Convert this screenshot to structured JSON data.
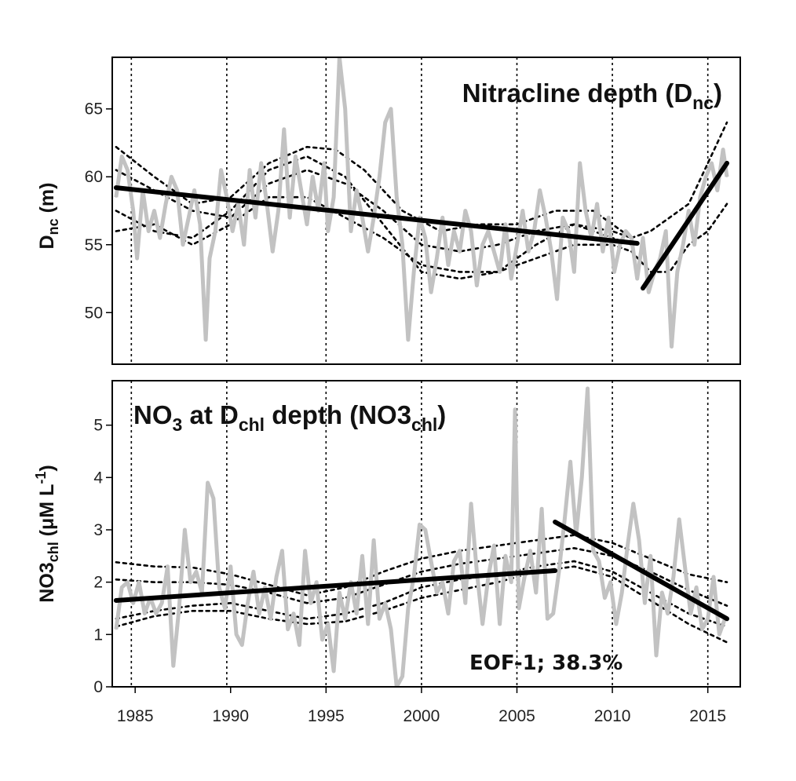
{
  "chart_data": [
    {
      "type": "line",
      "title": "Nitracline depth (D",
      "title_sub": "nc",
      "title_end": ")",
      "ylabel": "D",
      "ylabel_sub": "nc",
      "ylabel_end": " (m)",
      "xlim": [
        1983.8,
        2016.7
      ],
      "ylim": [
        46.2,
        68.8
      ],
      "yticks": [
        50,
        55,
        60,
        65
      ],
      "ytick_labels": [
        "50",
        "55",
        "60",
        "65"
      ],
      "vlines": [
        1984.8,
        1989.8,
        1995.0,
        2000.0,
        2005.0,
        2010.0,
        2015.0
      ],
      "grid": false,
      "series": [
        {
          "role": "observed",
          "color": "#c2c2c2",
          "x": [
            1984.0,
            1984.3,
            1984.6,
            1984.9,
            1985.1,
            1985.4,
            1985.7,
            1986.0,
            1986.3,
            1986.6,
            1986.9,
            1987.2,
            1987.5,
            1987.8,
            1988.1,
            1988.4,
            1988.7,
            1988.9,
            1989.2,
            1989.5,
            1989.8,
            1990.1,
            1990.4,
            1990.7,
            1991.0,
            1991.3,
            1991.6,
            1991.9,
            1992.2,
            1992.5,
            1992.8,
            1993.1,
            1993.4,
            1993.7,
            1994.0,
            1994.3,
            1994.6,
            1994.9,
            1995.1,
            1995.4,
            1995.7,
            1996.0,
            1996.3,
            1996.6,
            1996.9,
            1997.2,
            1997.5,
            1997.8,
            1998.1,
            1998.4,
            1998.7,
            1999.0,
            1999.3,
            1999.6,
            1999.9,
            2000.2,
            2000.5,
            2000.8,
            2001.1,
            2001.4,
            2001.7,
            2002.0,
            2002.3,
            2002.6,
            2002.9,
            2003.2,
            2003.5,
            2003.8,
            2004.1,
            2004.4,
            2004.7,
            2005.0,
            2005.3,
            2005.6,
            2005.9,
            2006.2,
            2006.5,
            2006.8,
            2007.1,
            2007.4,
            2007.7,
            2008.0,
            2008.3,
            2008.6,
            2008.9,
            2009.2,
            2009.5,
            2009.8,
            2010.1,
            2010.4,
            2010.7,
            2011.0,
            2011.3,
            2011.6,
            2011.9,
            2012.2,
            2012.5,
            2012.8,
            2013.1,
            2013.4,
            2013.7,
            2014.0,
            2014.3,
            2014.6,
            2014.9,
            2015.2,
            2015.5,
            2015.8,
            2016.0
          ],
          "y": [
            58.5,
            61.5,
            60.5,
            57.5,
            54.0,
            59.0,
            56.0,
            57.5,
            55.5,
            58.0,
            60.0,
            59.0,
            55.0,
            57.0,
            59.0,
            56.5,
            48.0,
            54.0,
            56.0,
            60.5,
            58.5,
            56.0,
            58.0,
            55.0,
            60.5,
            57.0,
            61.0,
            58.0,
            54.5,
            57.5,
            63.5,
            57.0,
            61.5,
            59.0,
            56.5,
            60.0,
            57.5,
            61.0,
            56.0,
            58.5,
            68.8,
            65.0,
            56.0,
            59.0,
            57.0,
            54.5,
            57.0,
            60.0,
            64.0,
            65.0,
            58.5,
            55.0,
            48.0,
            53.0,
            57.0,
            55.5,
            51.5,
            54.0,
            57.0,
            53.5,
            56.0,
            54.5,
            57.5,
            56.0,
            52.0,
            55.0,
            56.0,
            54.5,
            53.0,
            56.5,
            52.5,
            55.0,
            57.5,
            54.5,
            56.0,
            59.0,
            57.0,
            54.5,
            51.0,
            57.0,
            56.0,
            53.0,
            61.0,
            57.5,
            55.5,
            58.0,
            54.5,
            57.0,
            53.0,
            55.0,
            56.0,
            55.5,
            52.5,
            55.5,
            51.5,
            53.0,
            54.0,
            56.0,
            47.5,
            53.0,
            55.0,
            57.5,
            55.0,
            58.5,
            60.0,
            61.0,
            59.0,
            62.0,
            60.0
          ]
        },
        {
          "role": "trend",
          "color": "#000000",
          "x": [
            1984.0,
            2011.3
          ],
          "y": [
            59.2,
            55.1
          ]
        },
        {
          "role": "trend",
          "color": "#000000",
          "x": [
            2011.6,
            2016.0
          ],
          "y": [
            51.8,
            61.0
          ]
        },
        {
          "role": "interval",
          "color": "#000000",
          "style": "dotted",
          "x": [
            1984.0,
            1986.0,
            1988.0,
            1990.0,
            1992.0,
            1994.0,
            1995.5,
            1997.0,
            1999.0,
            2001.0,
            2003.0,
            2005.0,
            2007.0,
            2009.0,
            2011.0
          ],
          "y": [
            62.2,
            60.0,
            58.0,
            58.5,
            61.0,
            62.2,
            62.0,
            60.5,
            57.5,
            56.0,
            56.5,
            56.5,
            57.5,
            57.5,
            55.5
          ]
        },
        {
          "role": "interval",
          "color": "#000000",
          "style": "dotted",
          "x": [
            1984.0,
            1986.0,
            1988.0,
            1990.0,
            1992.0,
            1994.0,
            1996.0,
            1998.0,
            2000.0,
            2002.0,
            2004.0,
            2006.0,
            2008.0,
            2010.0,
            2011.0
          ],
          "y": [
            60.5,
            59.0,
            57.5,
            57.0,
            59.5,
            60.5,
            59.5,
            57.5,
            55.0,
            54.5,
            55.0,
            56.0,
            56.5,
            55.5,
            55.0
          ]
        },
        {
          "role": "interval",
          "color": "#000000",
          "style": "dotted",
          "x": [
            1984.0,
            1986.0,
            1988.0,
            1990.0,
            1992.0,
            1994.0,
            1996.0,
            1998.0,
            2000.0,
            2002.0,
            2004.0,
            2006.0,
            2008.0,
            2010.0,
            2011.0
          ],
          "y": [
            56.0,
            56.5,
            55.0,
            56.5,
            58.5,
            58.5,
            57.0,
            55.5,
            53.5,
            53.0,
            53.0,
            55.0,
            56.5,
            56.0,
            55.5
          ]
        },
        {
          "role": "interval",
          "color": "#000000",
          "style": "dotted",
          "x": [
            1984.0,
            1986.0,
            1988.0,
            1990.0,
            1992.0,
            1994.0,
            1996.0,
            1998.0,
            2000.0,
            2002.0,
            2004.0,
            2006.0,
            2008.0,
            2010.0,
            2011.0
          ],
          "y": [
            57.5,
            56.0,
            55.5,
            57.5,
            60.5,
            61.5,
            60.0,
            56.5,
            53.0,
            52.5,
            53.0,
            54.0,
            55.0,
            55.0,
            54.5
          ]
        },
        {
          "role": "interval",
          "color": "#000000",
          "style": "dotted",
          "x": [
            2011.0,
            2012.0,
            2013.0,
            2014.0,
            2015.0,
            2016.0
          ],
          "y": [
            55.5,
            56.0,
            57.0,
            58.0,
            61.0,
            64.0
          ]
        },
        {
          "role": "interval",
          "color": "#000000",
          "style": "dotted",
          "x": [
            2011.0,
            2012.0,
            2013.0,
            2014.0,
            2015.0,
            2016.0
          ],
          "y": [
            54.5,
            53.0,
            53.0,
            55.0,
            56.0,
            58.0
          ]
        }
      ]
    },
    {
      "type": "line",
      "title": "NO",
      "title_sub": "3",
      "title_mid": " at D",
      "title_sub2": "chl",
      "title_mid2": " depth (NO3",
      "title_sub3": "chl",
      "title_end": ")",
      "ylabel": "NO3",
      "ylabel_sub": "chl",
      "ylabel_end": " (μM L",
      "ylabel_sup": "-1",
      "ylabel_close": ")",
      "xlabel": "",
      "xlim": [
        1983.8,
        2016.7
      ],
      "ylim": [
        0,
        5.85
      ],
      "yticks": [
        0,
        1,
        2,
        3,
        4,
        5
      ],
      "ytick_labels": [
        "0",
        "1",
        "2",
        "3",
        "4",
        "5"
      ],
      "xticks": [
        1985,
        1990,
        1995,
        2000,
        2005,
        2010,
        2015
      ],
      "xtick_labels": [
        "1985",
        "1990",
        "1995",
        "2000",
        "2005",
        "2010",
        "2015"
      ],
      "vlines": [
        1984.8,
        1989.8,
        1995.0,
        2000.0,
        2005.0,
        2010.0,
        2015.0
      ],
      "annotation": "EOF-1; 38.3%",
      "grid": false,
      "series": [
        {
          "role": "observed",
          "color": "#c2c2c2",
          "x": [
            1984.0,
            1984.3,
            1984.6,
            1984.9,
            1985.2,
            1985.5,
            1985.8,
            1986.1,
            1986.4,
            1986.7,
            1987.0,
            1987.3,
            1987.6,
            1987.9,
            1988.2,
            1988.5,
            1988.8,
            1989.1,
            1989.4,
            1989.7,
            1990.0,
            1990.3,
            1990.6,
            1990.9,
            1991.2,
            1991.5,
            1991.8,
            1992.1,
            1992.4,
            1992.7,
            1993.0,
            1993.3,
            1993.6,
            1993.9,
            1994.2,
            1994.5,
            1994.8,
            1995.1,
            1995.4,
            1995.7,
            1996.0,
            1996.3,
            1996.6,
            1996.9,
            1997.2,
            1997.5,
            1997.8,
            1998.1,
            1998.4,
            1998.7,
            1999.0,
            1999.3,
            1999.6,
            1999.9,
            2000.2,
            2000.5,
            2000.8,
            2001.1,
            2001.4,
            2001.7,
            2002.0,
            2002.3,
            2002.6,
            2002.9,
            2003.2,
            2003.5,
            2003.8,
            2004.1,
            2004.4,
            2004.7,
            2004.9,
            2005.1,
            2005.4,
            2005.7,
            2006.0,
            2006.3,
            2006.6,
            2006.9,
            2007.2,
            2007.5,
            2007.8,
            2008.1,
            2008.4,
            2008.7,
            2009.0,
            2009.3,
            2009.6,
            2009.9,
            2010.2,
            2010.5,
            2010.8,
            2011.1,
            2011.4,
            2011.7,
            2012.0,
            2012.3,
            2012.6,
            2012.9,
            2013.2,
            2013.5,
            2013.8,
            2014.1,
            2014.4,
            2014.7,
            2015.0,
            2015.3,
            2015.6,
            2015.9
          ],
          "y": [
            1.1,
            1.9,
            2.0,
            1.6,
            2.0,
            1.4,
            1.7,
            1.4,
            1.6,
            2.3,
            0.4,
            1.5,
            3.0,
            2.0,
            2.2,
            1.8,
            3.9,
            3.6,
            1.9,
            1.5,
            2.3,
            1.0,
            0.8,
            1.6,
            2.2,
            1.4,
            1.9,
            1.3,
            2.1,
            2.6,
            1.1,
            1.4,
            0.8,
            2.6,
            1.6,
            2.0,
            0.9,
            1.2,
            0.3,
            1.8,
            1.3,
            2.0,
            1.4,
            2.5,
            1.2,
            2.8,
            1.3,
            1.6,
            1.1,
            0.0,
            0.2,
            1.5,
            2.1,
            3.1,
            3.0,
            2.4,
            1.8,
            2.0,
            1.4,
            2.4,
            2.6,
            1.6,
            3.5,
            2.2,
            1.2,
            2.1,
            2.7,
            1.2,
            2.5,
            2.0,
            5.3,
            1.5,
            2.1,
            2.6,
            1.8,
            3.4,
            1.3,
            1.4,
            2.2,
            3.2,
            4.3,
            2.9,
            4.0,
            5.7,
            2.6,
            2.4,
            1.7,
            2.0,
            1.2,
            1.8,
            2.7,
            3.5,
            2.8,
            1.6,
            2.5,
            0.6,
            1.8,
            1.4,
            2.1,
            3.2,
            2.3,
            1.4,
            1.9,
            1.1,
            1.3,
            2.1,
            1.0,
            1.3
          ]
        },
        {
          "role": "trend",
          "color": "#000000",
          "x": [
            1984.0,
            2007.0
          ],
          "y": [
            1.65,
            2.22
          ]
        },
        {
          "role": "trend",
          "color": "#000000",
          "x": [
            2007.0,
            2016.0
          ],
          "y": [
            3.15,
            1.3
          ]
        },
        {
          "role": "interval",
          "color": "#000000",
          "style": "dotted",
          "x": [
            1984.0,
            1986.0,
            1988.0,
            1990.0,
            1992.0,
            1994.0,
            1996.0,
            1998.0,
            2000.0,
            2002.0,
            2004.0,
            2006.0,
            2008.0,
            2010.0,
            2012.0,
            2014.0,
            2016.0
          ],
          "y": [
            2.38,
            2.3,
            2.28,
            2.15,
            1.95,
            1.75,
            1.9,
            2.2,
            2.45,
            2.6,
            2.7,
            2.8,
            2.9,
            2.75,
            2.45,
            2.15,
            2.0
          ]
        },
        {
          "role": "interval",
          "color": "#000000",
          "style": "dotted",
          "x": [
            1984.0,
            1986.0,
            1988.0,
            1990.0,
            1992.0,
            1994.0,
            1996.0,
            1998.0,
            2000.0,
            2002.0,
            2004.0,
            2006.0,
            2008.0,
            2010.0,
            2012.0,
            2014.0,
            2016.0
          ],
          "y": [
            2.05,
            2.0,
            2.0,
            1.95,
            1.8,
            1.6,
            1.7,
            1.95,
            2.2,
            2.35,
            2.45,
            2.55,
            2.65,
            2.5,
            2.2,
            1.85,
            1.55
          ]
        },
        {
          "role": "interval",
          "color": "#000000",
          "style": "dotted",
          "x": [
            1984.0,
            1986.0,
            1988.0,
            1990.0,
            1992.0,
            1994.0,
            1996.0,
            1998.0,
            2000.0,
            2002.0,
            2004.0,
            2006.0,
            2008.0,
            2010.0,
            2012.0,
            2014.0,
            2016.0
          ],
          "y": [
            1.3,
            1.45,
            1.55,
            1.6,
            1.45,
            1.3,
            1.4,
            1.6,
            1.9,
            2.05,
            2.15,
            2.3,
            2.4,
            2.2,
            1.8,
            1.4,
            1.15
          ]
        },
        {
          "role": "interval",
          "color": "#000000",
          "style": "dotted",
          "x": [
            1984.0,
            1986.0,
            1988.0,
            1990.0,
            1992.0,
            1994.0,
            1996.0,
            1998.0,
            2000.0,
            2002.0,
            2004.0,
            2006.0,
            2008.0,
            2010.0,
            2012.0,
            2014.0,
            2016.0
          ],
          "y": [
            1.15,
            1.35,
            1.45,
            1.45,
            1.3,
            1.2,
            1.25,
            1.45,
            1.7,
            1.85,
            2.0,
            2.2,
            2.3,
            2.1,
            1.65,
            1.2,
            0.85
          ]
        }
      ]
    }
  ]
}
